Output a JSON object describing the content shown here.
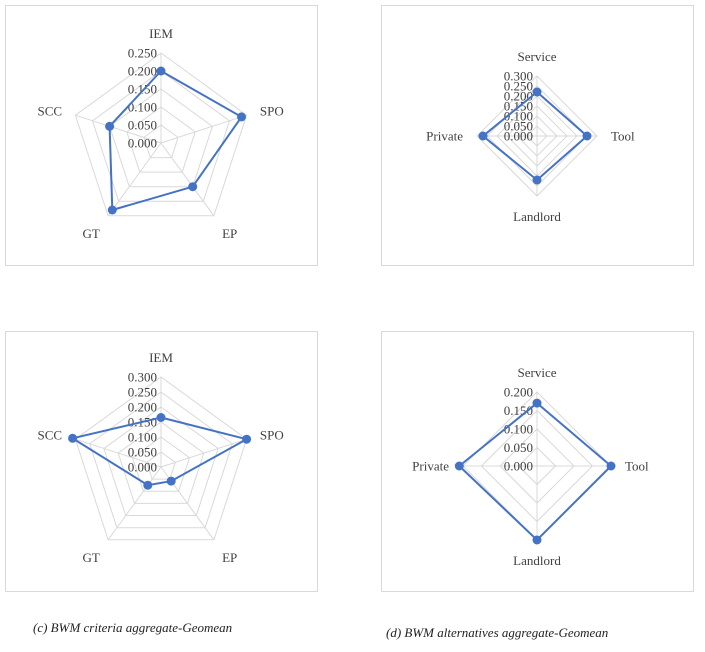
{
  "colors": {
    "series": "#4472c4",
    "grid": "#d9d9d9",
    "text": "#404040",
    "border": "#d9d9d9"
  },
  "captions": {
    "c": "(c) BWM criteria aggregate-Geomean",
    "d": "(d) BWM alternatives aggregate-Geomean"
  },
  "chart_data": [
    {
      "type": "radar",
      "categories": [
        "IEM",
        "SPO",
        "EP",
        "GT",
        "SCC"
      ],
      "ticks": [
        "0.000",
        "0.050",
        "0.100",
        "0.150",
        "0.200",
        "0.250"
      ],
      "rmax": 0.25,
      "series": [
        {
          "values": [
            0.2,
            0.235,
            0.15,
            0.23,
            0.15
          ]
        }
      ]
    },
    {
      "type": "radar",
      "categories": [
        "Service",
        "Tool",
        "Landlord",
        "Private"
      ],
      "ticks": [
        "0.000",
        "0.050",
        "0.100",
        "0.150",
        "0.200",
        "0.250",
        "0.300"
      ],
      "rmax": 0.3,
      "series": [
        {
          "values": [
            0.22,
            0.25,
            0.22,
            0.27
          ]
        }
      ]
    },
    {
      "type": "radar",
      "categories": [
        "IEM",
        "SPO",
        "EP",
        "GT",
        "SCC"
      ],
      "ticks": [
        "0.000",
        "0.050",
        "0.100",
        "0.150",
        "0.200",
        "0.250",
        "0.300"
      ],
      "rmax": 0.3,
      "series": [
        {
          "values": [
            0.165,
            0.3,
            0.058,
            0.075,
            0.31
          ]
        }
      ]
    },
    {
      "type": "radar",
      "categories": [
        "Service",
        "Tool",
        "Landlord",
        "Private"
      ],
      "ticks": [
        "0.000",
        "0.050",
        "0.100",
        "0.150",
        "0.200"
      ],
      "rmax": 0.2,
      "series": [
        {
          "values": [
            0.17,
            0.2,
            0.2,
            0.21
          ]
        }
      ]
    }
  ]
}
